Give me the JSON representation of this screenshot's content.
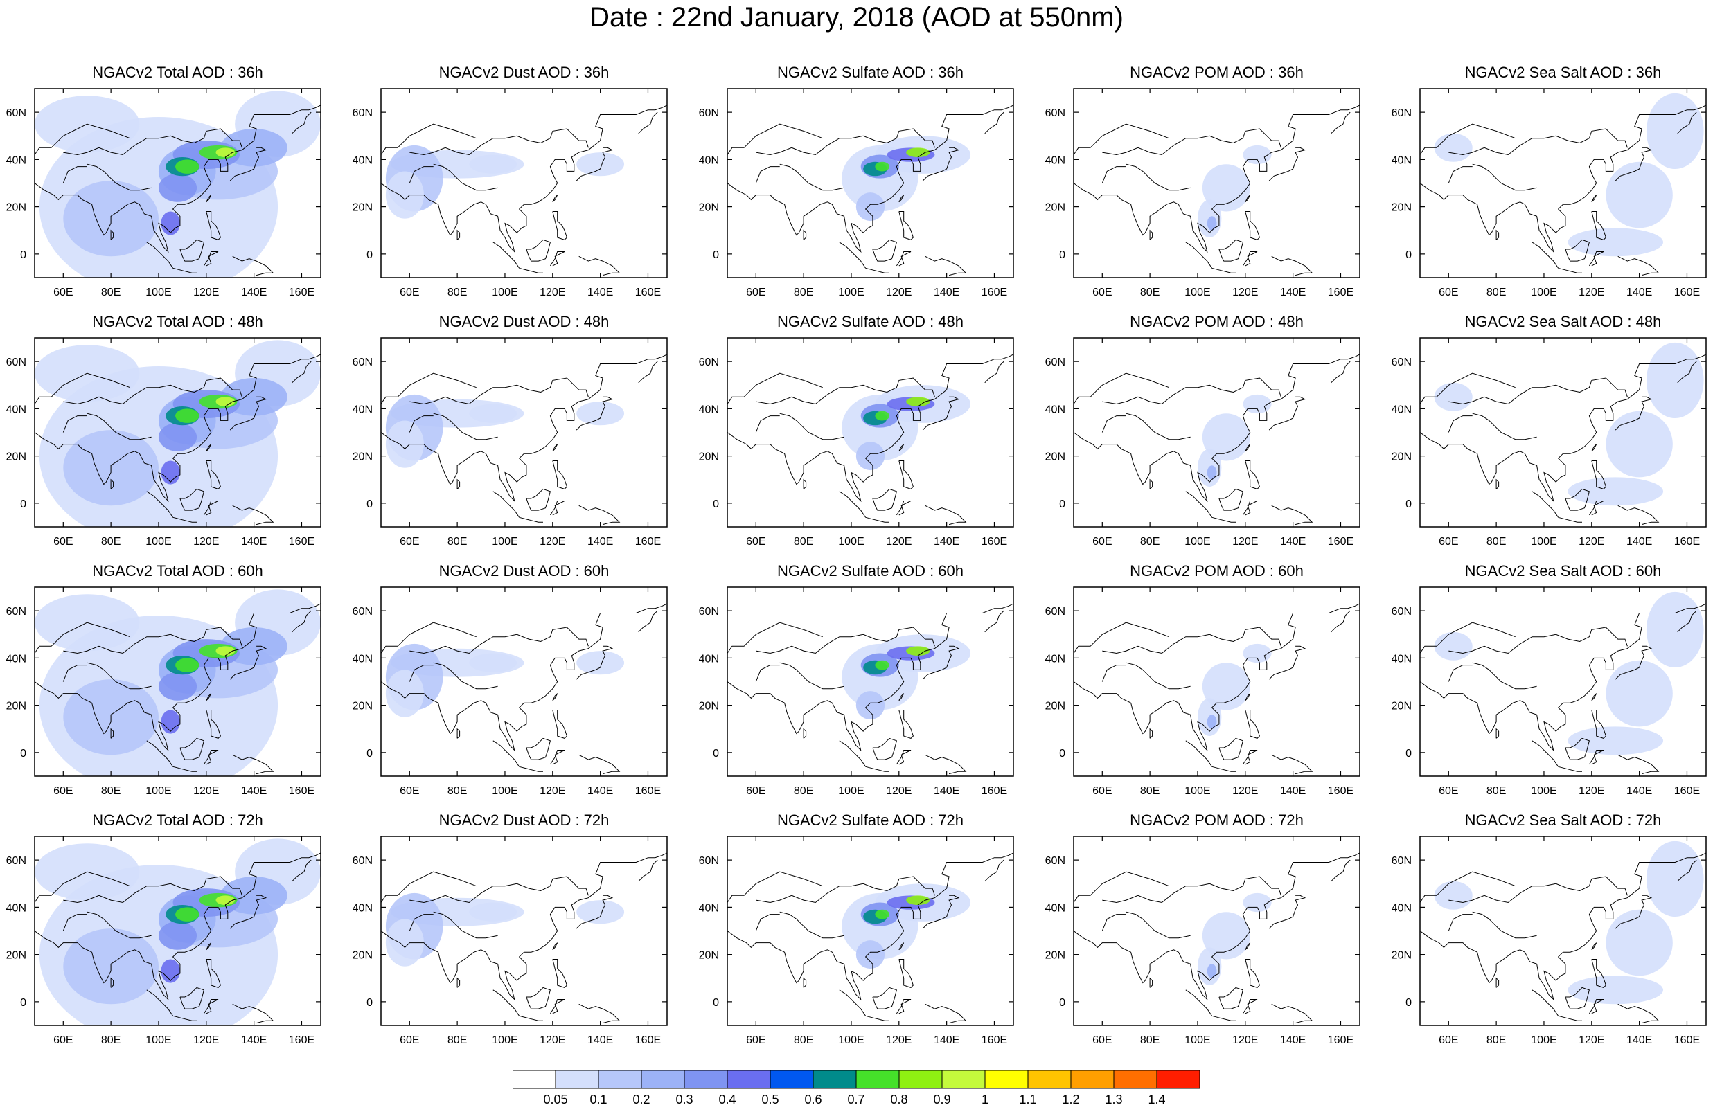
{
  "figure": {
    "title": "Date : 22nd January, 2018 (AOD at 550nm)"
  },
  "panel_titles": [
    [
      "NGACv2 Total AOD : 36h",
      "NGACv2 Dust AOD : 36h",
      "NGACv2 Sulfate AOD : 36h",
      "NGACv2 POM AOD : 36h",
      "NGACv2 Sea Salt AOD : 36h"
    ],
    [
      "NGACv2 Total AOD : 48h",
      "NGACv2 Dust AOD : 48h",
      "NGACv2 Sulfate AOD : 48h",
      "NGACv2 POM AOD : 48h",
      "NGACv2 Sea Salt AOD : 48h"
    ],
    [
      "NGACv2 Total AOD : 60h",
      "NGACv2 Dust AOD : 60h",
      "NGACv2 Sulfate AOD : 60h",
      "NGACv2 POM AOD : 60h",
      "NGACv2 Sea Salt AOD : 60h"
    ],
    [
      "NGACv2 Total AOD : 72h",
      "NGACv2 Dust AOD : 72h",
      "NGACv2 Sulfate AOD : 72h",
      "NGACv2 POM AOD : 72h",
      "NGACv2 Sea Salt  AOD : 72h"
    ]
  ],
  "map": {
    "lon_range": [
      48,
      168
    ],
    "lat_range": [
      -10,
      70
    ],
    "lon_ticks": [
      60,
      80,
      100,
      120,
      140,
      160
    ],
    "lon_tick_labels": [
      "60E",
      "80E",
      "100E",
      "120E",
      "140E",
      "160E"
    ],
    "lat_ticks": [
      0,
      20,
      40,
      60
    ],
    "lat_tick_labels": [
      "0",
      "20N",
      "40N",
      "60N"
    ]
  },
  "colorbar": {
    "colors": [
      "#ffffff",
      "#d4dffc",
      "#b6c7fa",
      "#9cb2f7",
      "#7f94f2",
      "#6a6ef0",
      "#0058f0",
      "#008b8b",
      "#45e12a",
      "#8ff012",
      "#c4fa3c",
      "#ffff00",
      "#ffc400",
      "#ff9f00",
      "#ff6f00",
      "#ff1e00"
    ],
    "labels": [
      "0.05",
      "0.1",
      "0.2",
      "0.3",
      "0.4",
      "0.5",
      "0.6",
      "0.7",
      "0.8",
      "0.9",
      "1",
      "1.1",
      "1.2",
      "1.3",
      "1.4"
    ]
  }
}
